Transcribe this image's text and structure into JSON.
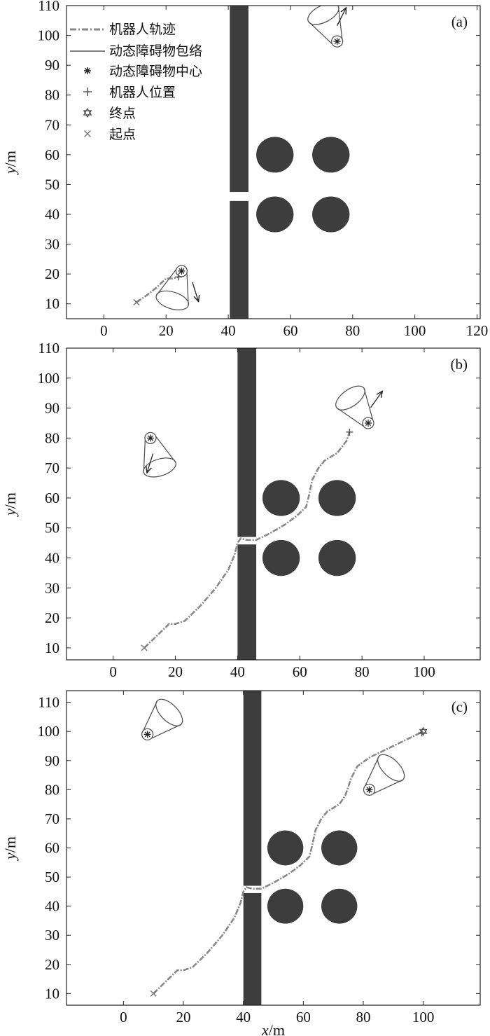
{
  "figure": {
    "x_axis_label": "x",
    "y_axis_label": "y",
    "axis_unit": "/m"
  },
  "legend": [
    {
      "label": "机器人轨迹",
      "marker": "dash-dot-line"
    },
    {
      "label": "动态障碍物包络",
      "marker": "solid-line"
    },
    {
      "label": "动态障碍物中心",
      "marker": "asterisk"
    },
    {
      "label": "机器人位置",
      "marker": "plus"
    },
    {
      "label": "终点",
      "marker": "hexagram"
    },
    {
      "label": "起点",
      "marker": "x-cross"
    }
  ],
  "colors": {
    "static_obstacle": "#3d3d3d",
    "trajectory": "#888888",
    "envelope": "#555555",
    "axes": "#222222"
  },
  "chart_data": [
    {
      "type": "scatter",
      "panel_label": "(a)",
      "xlim": [
        -12,
        121
      ],
      "ylim": [
        5,
        110
      ],
      "xticks": [
        0,
        20,
        40,
        60,
        80,
        100,
        120
      ],
      "yticks": [
        10,
        20,
        30,
        40,
        50,
        60,
        70,
        80,
        90,
        100,
        110
      ],
      "static_obstacles": {
        "walls": [
          {
            "x0": 40.5,
            "x1": 46.5,
            "y0": 47.5,
            "y1": 110
          },
          {
            "x0": 40.5,
            "x1": 46.5,
            "y0": 5,
            "y1": 44.5
          }
        ],
        "circles": [
          {
            "cx": 55,
            "cy": 60,
            "r": 6
          },
          {
            "cx": 73,
            "cy": 60,
            "r": 6
          },
          {
            "cx": 55,
            "cy": 40,
            "r": 6
          },
          {
            "cx": 73,
            "cy": 40,
            "r": 6
          }
        ]
      },
      "trajectory": {
        "x": [
          10.5,
          14,
          17,
          20,
          22,
          24
        ],
        "y": [
          10.5,
          13,
          15.5,
          18.5,
          18.5,
          19
        ]
      },
      "start": {
        "x": 10.5,
        "y": 10.5
      },
      "goal": null,
      "robot_position": {
        "x": 24,
        "y": 19
      },
      "dynamic_obstacles": [
        {
          "center": {
            "x": 25,
            "y": 21
          },
          "heading": {
            "dx": 2.5,
            "dy": 8
          }
        },
        {
          "center": {
            "x": 75,
            "y": 98
          },
          "heading": {
            "dx": 3.5,
            "dy": -7
          }
        }
      ]
    },
    {
      "type": "scatter",
      "panel_label": "(b)",
      "xlim": [
        -15,
        118
      ],
      "ylim": [
        6,
        110
      ],
      "xticks": [
        0,
        20,
        40,
        60,
        80,
        100
      ],
      "yticks": [
        10,
        20,
        30,
        40,
        50,
        60,
        70,
        80,
        90,
        100,
        110
      ],
      "static_obstacles": {
        "walls": [
          {
            "x0": 40,
            "x1": 46,
            "y0": 47,
            "y1": 110
          },
          {
            "x0": 40,
            "x1": 46,
            "y0": 6,
            "y1": 44.5
          }
        ],
        "circles": [
          {
            "cx": 54,
            "cy": 60,
            "r": 6
          },
          {
            "cx": 72,
            "cy": 60,
            "r": 6
          },
          {
            "cx": 54,
            "cy": 40,
            "r": 6
          },
          {
            "cx": 72,
            "cy": 40,
            "r": 6
          }
        ]
      },
      "trajectory": {
        "x": [
          10,
          14,
          18,
          20,
          23,
          28,
          33,
          37,
          39,
          40,
          41,
          43,
          46,
          50,
          55,
          59,
          62,
          63,
          64,
          66,
          68,
          72,
          75,
          76
        ],
        "y": [
          10,
          14,
          18,
          18,
          19,
          24,
          30,
          36,
          41,
          45,
          46.5,
          46,
          46,
          48,
          51,
          54,
          57,
          61,
          66,
          70,
          72.5,
          75,
          79,
          82
        ]
      },
      "start": {
        "x": 10,
        "y": 10
      },
      "goal": null,
      "robot_position": {
        "x": 76,
        "y": 82
      },
      "dynamic_obstacles": [
        {
          "center": {
            "x": 12,
            "y": 80
          },
          "heading": {
            "dx": -2.5,
            "dy": 8
          }
        },
        {
          "center": {
            "x": 82,
            "y": 85
          },
          "heading": {
            "dx": 5,
            "dy": -7
          }
        }
      ]
    },
    {
      "type": "scatter",
      "panel_label": "(c)",
      "xlim": [
        -19,
        119
      ],
      "ylim": [
        6,
        114
      ],
      "xticks": [
        0,
        20,
        40,
        60,
        80,
        100
      ],
      "yticks": [
        10,
        20,
        30,
        40,
        50,
        60,
        70,
        80,
        90,
        100,
        110
      ],
      "static_obstacles": {
        "walls": [
          {
            "x0": 40,
            "x1": 46,
            "y0": 47,
            "y1": 114
          },
          {
            "x0": 40,
            "x1": 46,
            "y0": 6,
            "y1": 44.5
          }
        ],
        "circles": [
          {
            "cx": 54,
            "cy": 60,
            "r": 6
          },
          {
            "cx": 72,
            "cy": 60,
            "r": 6
          },
          {
            "cx": 54,
            "cy": 40,
            "r": 6
          },
          {
            "cx": 72,
            "cy": 40,
            "r": 6
          }
        ]
      },
      "trajectory": {
        "x": [
          10,
          14,
          18,
          20,
          23,
          28,
          33,
          37,
          39,
          40,
          41,
          43,
          46,
          50,
          55,
          59,
          62,
          63,
          64,
          66,
          68,
          72,
          74,
          76,
          78,
          82,
          88,
          94,
          100
        ],
        "y": [
          10,
          14,
          18,
          18,
          19,
          24,
          30,
          36,
          41,
          45,
          46.5,
          46,
          46,
          48,
          51,
          54,
          57,
          61,
          66,
          70,
          72.5,
          75,
          78,
          84,
          88,
          91,
          94,
          97,
          100
        ]
      },
      "start": {
        "x": 10,
        "y": 10
      },
      "goal": {
        "x": 100,
        "y": 100
      },
      "robot_position": {
        "x": 99.5,
        "y": 99.5
      },
      "dynamic_obstacles": [
        {
          "center": {
            "x": 8,
            "y": 99
          },
          "heading": null
        },
        {
          "center": {
            "x": 82,
            "y": 80
          },
          "heading": null
        }
      ]
    }
  ]
}
